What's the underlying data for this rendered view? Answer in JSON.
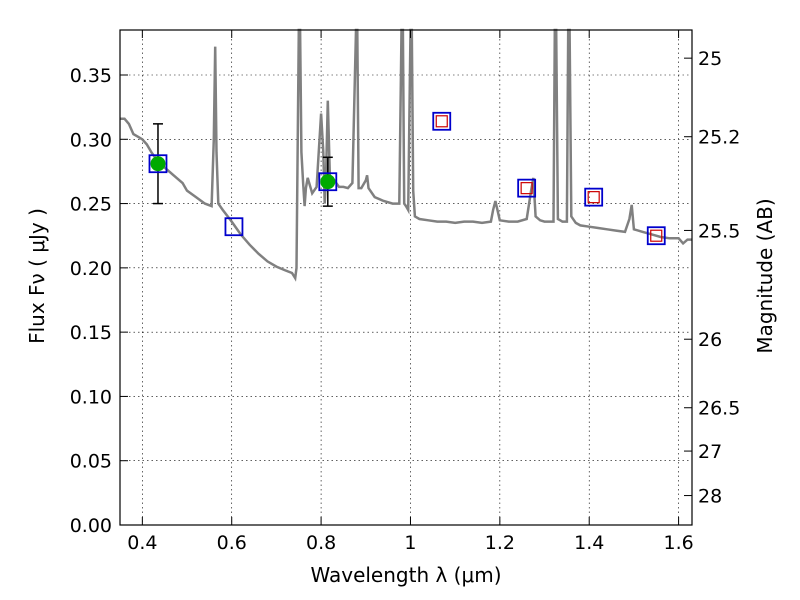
{
  "chart_data": {
    "type": "scatter",
    "xlabel": "Wavelength  λ (μm)",
    "ylabel": "Flux  Fν  ( μJy )",
    "ylabel_right": "Magnitude (AB)",
    "xlim": [
      0.35,
      1.63
    ],
    "ylim": [
      0.0,
      0.385
    ],
    "grid": true,
    "x_ticks": [
      0.4,
      0.6,
      0.8,
      1.0,
      1.2,
      1.4,
      1.6
    ],
    "x_tick_labels": [
      "0.4",
      "0.6",
      "0.8",
      "1",
      "1.2",
      "1.4",
      "1.6"
    ],
    "y_ticks": [
      0.0,
      0.05,
      0.1,
      0.15,
      0.2,
      0.25,
      0.3,
      0.35
    ],
    "y_tick_labels": [
      "0.00",
      "0.05",
      "0.10",
      "0.15",
      "0.20",
      "0.25",
      "0.30",
      "0.35"
    ],
    "right_ticks": [
      {
        "label": "25",
        "flux": 0.3631
      },
      {
        "label": "25.2",
        "flux": 0.302
      },
      {
        "label": "25.5",
        "flux": 0.2291
      },
      {
        "label": "26",
        "flux": 0.1445
      },
      {
        "label": "26.5",
        "flux": 0.0912
      },
      {
        "label": "27",
        "flux": 0.0575
      },
      {
        "label": "28",
        "flux": 0.0229
      }
    ],
    "series": [
      {
        "kind": "spectrum",
        "color": "#808080",
        "x": [
          0.35,
          0.36,
          0.37,
          0.38,
          0.39,
          0.4,
          0.41,
          0.42,
          0.43,
          0.45,
          0.47,
          0.49,
          0.5,
          0.52,
          0.54,
          0.555,
          0.56,
          0.563,
          0.566,
          0.57,
          0.58,
          0.6,
          0.62,
          0.64,
          0.66,
          0.68,
          0.7,
          0.72,
          0.735,
          0.742,
          0.745,
          0.75,
          0.753,
          0.756,
          0.76,
          0.763,
          0.766,
          0.77,
          0.78,
          0.79,
          0.8,
          0.805,
          0.808,
          0.811,
          0.815,
          0.82,
          0.83,
          0.84,
          0.85,
          0.86,
          0.87,
          0.878,
          0.881,
          0.884,
          0.89,
          0.9,
          0.903,
          0.906,
          0.92,
          0.94,
          0.96,
          0.975,
          0.98,
          0.983,
          0.986,
          0.99,
          0.995,
          1.0,
          1.003,
          1.006,
          1.01,
          1.02,
          1.04,
          1.06,
          1.08,
          1.1,
          1.12,
          1.14,
          1.16,
          1.18,
          1.185,
          1.19,
          1.2,
          1.22,
          1.24,
          1.26,
          1.27,
          1.275,
          1.28,
          1.29,
          1.3,
          1.32,
          1.323,
          1.326,
          1.33,
          1.335,
          1.34,
          1.35,
          1.353,
          1.356,
          1.36,
          1.37,
          1.38,
          1.4,
          1.42,
          1.44,
          1.46,
          1.48,
          1.49,
          1.495,
          1.5,
          1.52,
          1.54,
          1.56,
          1.58,
          1.6,
          1.61,
          1.62,
          1.63
        ],
        "y": [
          0.316,
          0.316,
          0.312,
          0.304,
          0.302,
          0.3,
          0.296,
          0.29,
          0.285,
          0.278,
          0.272,
          0.266,
          0.26,
          0.255,
          0.25,
          0.248,
          0.3,
          0.372,
          0.29,
          0.25,
          0.245,
          0.236,
          0.226,
          0.218,
          0.211,
          0.205,
          0.201,
          0.198,
          0.196,
          0.192,
          0.2,
          0.385,
          0.385,
          0.29,
          0.265,
          0.248,
          0.262,
          0.27,
          0.258,
          0.263,
          0.32,
          0.29,
          0.25,
          0.27,
          0.33,
          0.267,
          0.268,
          0.263,
          0.263,
          0.262,
          0.266,
          0.385,
          0.385,
          0.262,
          0.262,
          0.268,
          0.272,
          0.262,
          0.255,
          0.252,
          0.25,
          0.25,
          0.385,
          0.385,
          0.25,
          0.248,
          0.245,
          0.385,
          0.385,
          0.26,
          0.24,
          0.238,
          0.237,
          0.236,
          0.236,
          0.235,
          0.236,
          0.236,
          0.235,
          0.236,
          0.245,
          0.252,
          0.237,
          0.236,
          0.236,
          0.238,
          0.26,
          0.27,
          0.24,
          0.237,
          0.236,
          0.236,
          0.385,
          0.385,
          0.238,
          0.237,
          0.236,
          0.236,
          0.385,
          0.385,
          0.24,
          0.235,
          0.233,
          0.232,
          0.231,
          0.23,
          0.229,
          0.228,
          0.238,
          0.249,
          0.23,
          0.228,
          0.226,
          0.224,
          0.223,
          0.223,
          0.219,
          0.222,
          0.222
        ]
      },
      {
        "kind": "observed",
        "color": "#00aa00",
        "x": [
          0.435,
          0.815
        ],
        "y": [
          0.281,
          0.267
        ],
        "yerr": [
          0.031,
          0.019
        ]
      },
      {
        "kind": "model_photometry",
        "color": "#0000cc",
        "x": [
          0.435,
          0.605,
          0.815,
          1.07,
          1.26,
          1.41,
          1.55
        ],
        "y": [
          0.281,
          0.232,
          0.267,
          0.314,
          0.262,
          0.255,
          0.225
        ]
      },
      {
        "kind": "upper_limit_model",
        "color": "#cc0000",
        "x": [
          1.07,
          1.26,
          1.41,
          1.55
        ],
        "y": [
          0.314,
          0.262,
          0.255,
          0.225
        ]
      }
    ]
  }
}
